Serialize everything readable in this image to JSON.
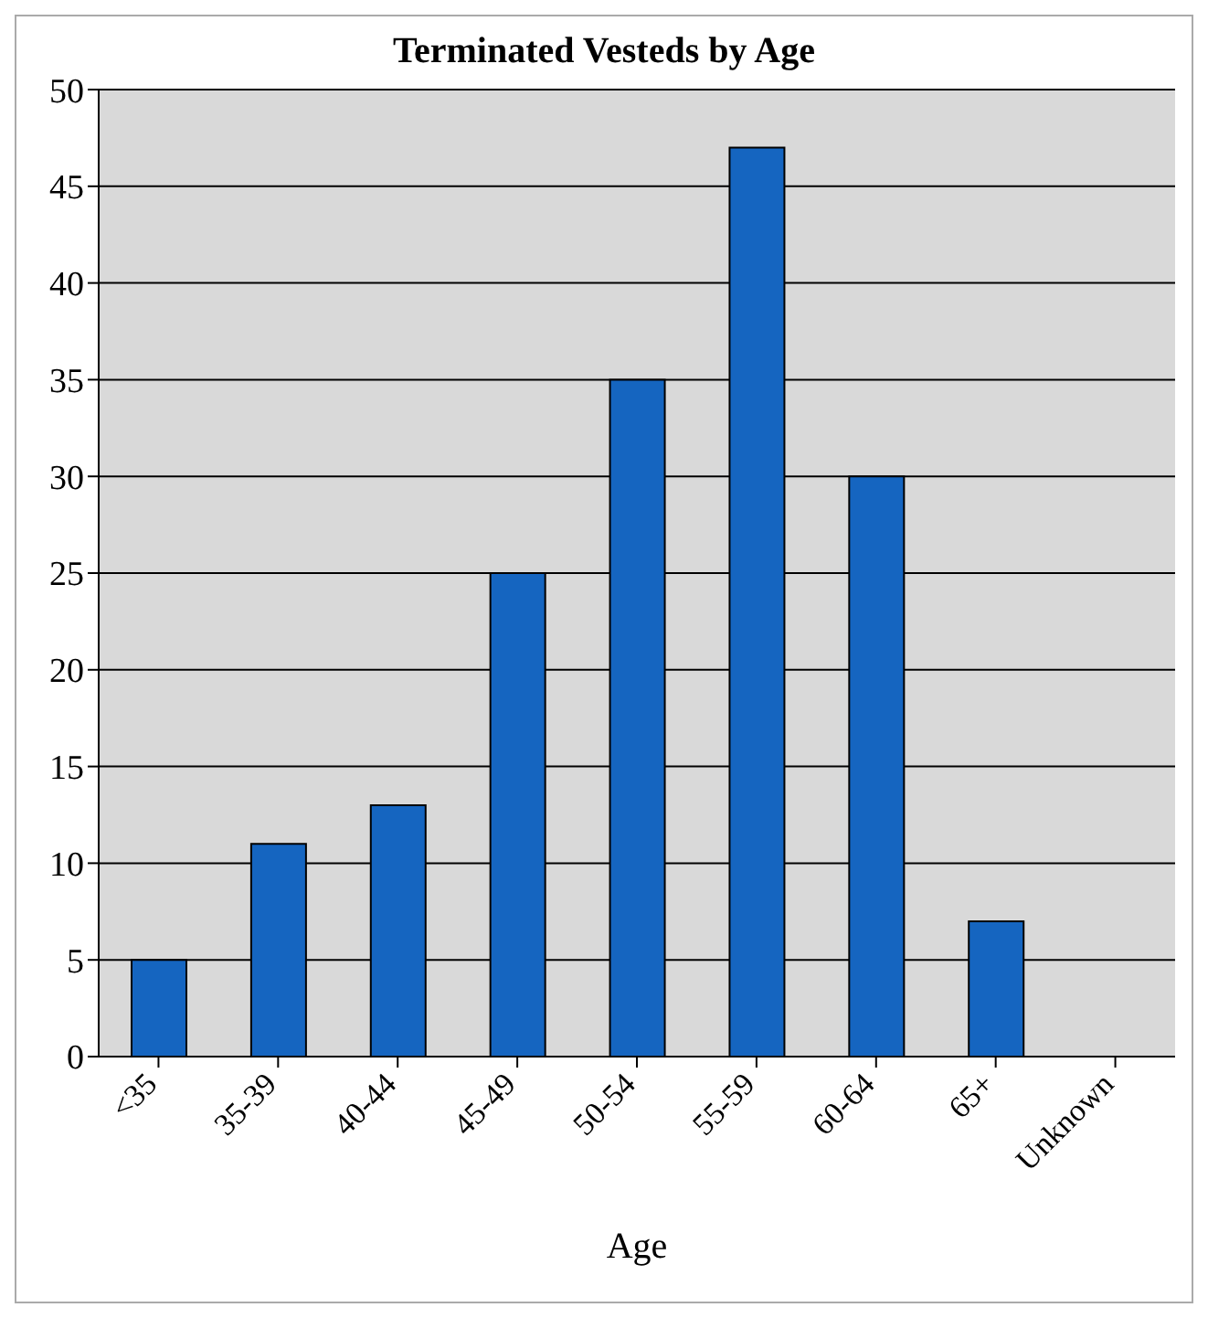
{
  "chart_data": {
    "type": "bar",
    "title": "Terminated Vesteds by Age",
    "xlabel": "Age",
    "categories": [
      "<35",
      "35-39",
      "40-44",
      "45-49",
      "50-54",
      "55-59",
      "60-64",
      "65+",
      "Unknown"
    ],
    "values": [
      5,
      11,
      13,
      25,
      35,
      47,
      30,
      7,
      0
    ],
    "color": "#1565c0",
    "ylim": [
      0,
      50
    ],
    "yticks": [
      0,
      5,
      10,
      15,
      20,
      25,
      30,
      35,
      40,
      45,
      50
    ],
    "grid": "y"
  }
}
